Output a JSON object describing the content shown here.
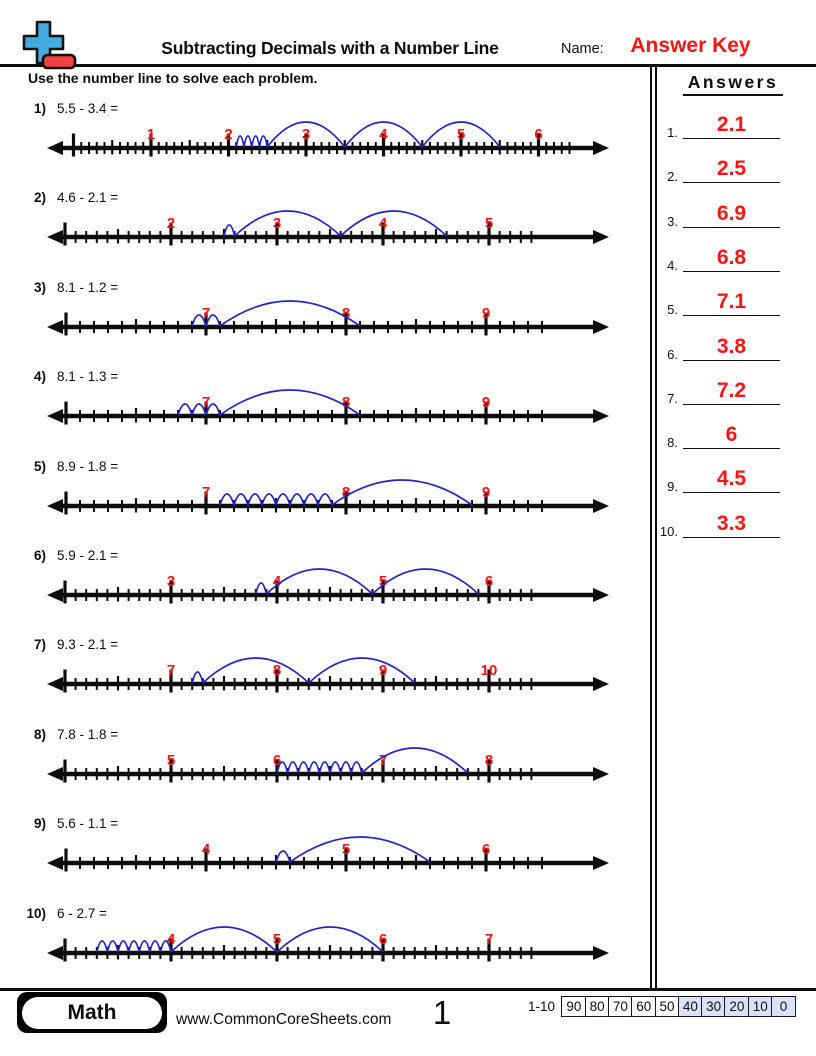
{
  "header": {
    "title": "Subtracting Decimals with a Number Line",
    "name_label": "Name:",
    "answer_key_label": "Answer Key",
    "logo": {
      "plus_icon_color": "#42ace0",
      "minus_icon_color": "#ef4343"
    }
  },
  "instruction": "Use the number line to solve each problem.",
  "colors": {
    "accent_red": "#fb1512",
    "arc_blue": "#2323cd",
    "line_black": "#0d0d0d",
    "score_shaded": "#dce2f6"
  },
  "problems": [
    {
      "num": "1)",
      "expr": "5.5 - 3.4 =",
      "label_min": 1,
      "label_max": 6,
      "start": 5.5,
      "whole_hops": 3,
      "tenth_hops": 4,
      "answer": "2.1"
    },
    {
      "num": "2)",
      "expr": "4.6 - 2.1 =",
      "label_min": 2,
      "label_max": 5,
      "start": 4.6,
      "whole_hops": 2,
      "tenth_hops": 1,
      "answer": "2.5"
    },
    {
      "num": "3)",
      "expr": "8.1 - 1.2 =",
      "label_min": 7,
      "label_max": 9,
      "start": 8.1,
      "whole_hops": 1,
      "tenth_hops": 2,
      "answer": "6.9"
    },
    {
      "num": "4)",
      "expr": "8.1 - 1.3 =",
      "label_min": 7,
      "label_max": 9,
      "start": 8.1,
      "whole_hops": 1,
      "tenth_hops": 3,
      "answer": "6.8"
    },
    {
      "num": "5)",
      "expr": "8.9 - 1.8 =",
      "label_min": 7,
      "label_max": 9,
      "start": 8.9,
      "whole_hops": 1,
      "tenth_hops": 8,
      "answer": "7.1"
    },
    {
      "num": "6)",
      "expr": "5.9 - 2.1 =",
      "label_min": 3,
      "label_max": 6,
      "start": 5.9,
      "whole_hops": 2,
      "tenth_hops": 1,
      "answer": "3.8"
    },
    {
      "num": "7)",
      "expr": "9.3 - 2.1 =",
      "label_min": 7,
      "label_max": 10,
      "start": 9.3,
      "whole_hops": 2,
      "tenth_hops": 1,
      "answer": "7.2"
    },
    {
      "num": "8)",
      "expr": "7.8 - 1.8 =",
      "label_min": 5,
      "label_max": 8,
      "start": 7.8,
      "whole_hops": 1,
      "tenth_hops": 8,
      "answer": "6"
    },
    {
      "num": "9)",
      "expr": "5.6 - 1.1 =",
      "label_min": 4,
      "label_max": 6,
      "start": 5.6,
      "whole_hops": 1,
      "tenth_hops": 1,
      "answer": "4.5"
    },
    {
      "num": "10)",
      "expr": "6 - 2.7 =",
      "label_min": 4,
      "label_max": 7,
      "start": 6.0,
      "whole_hops": 2,
      "tenth_hops": 7,
      "answer": "3.3"
    }
  ],
  "answers_panel": {
    "heading": "Answers",
    "items": [
      {
        "num": "1.",
        "value": "2.1"
      },
      {
        "num": "2.",
        "value": "2.5"
      },
      {
        "num": "3.",
        "value": "6.9"
      },
      {
        "num": "4.",
        "value": "6.8"
      },
      {
        "num": "5.",
        "value": "7.1"
      },
      {
        "num": "6.",
        "value": "3.8"
      },
      {
        "num": "7.",
        "value": "7.2"
      },
      {
        "num": "8.",
        "value": "6"
      },
      {
        "num": "9.",
        "value": "4.5"
      },
      {
        "num": "10.",
        "value": "3.3"
      }
    ]
  },
  "footer": {
    "subject_badge": "Math",
    "website": "www.CommonCoreSheets.com",
    "page_number": "1",
    "score_range_label": "1-10",
    "score_cells": [
      "90",
      "80",
      "70",
      "60",
      "50",
      "40",
      "30",
      "20",
      "10",
      "0"
    ]
  }
}
